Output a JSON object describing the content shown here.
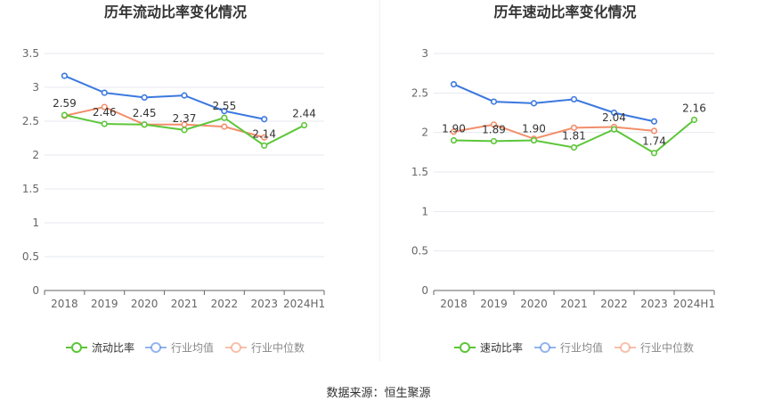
{
  "footer": {
    "source": "数据来源：恒生聚源"
  },
  "chart_data": [
    {
      "type": "line",
      "title": "历年流动比率变化情况",
      "categories": [
        "2018",
        "2019",
        "2020",
        "2021",
        "2022",
        "2023",
        "2024H1"
      ],
      "ylim": [
        0,
        3.5
      ],
      "yticks": [
        0,
        0.5,
        1,
        1.5,
        2,
        2.5,
        3,
        3.5
      ],
      "ytick_labels": [
        "0",
        "0.5",
        "1",
        "1.5",
        "2",
        "2.5",
        "3",
        "3.5"
      ],
      "grid": true,
      "legend_position": "bottom",
      "series": [
        {
          "name": "流动比率",
          "color": "#5cc638",
          "values": [
            2.59,
            2.46,
            2.45,
            2.37,
            2.55,
            2.14,
            2.44
          ],
          "labels": [
            "2.59",
            "2.46",
            "2.45",
            "2.37",
            "2.55",
            "2.14",
            "2.44"
          ]
        },
        {
          "name": "行业均值",
          "color": "#3b78e0",
          "values": [
            3.17,
            2.92,
            2.85,
            2.88,
            2.65,
            2.53,
            null
          ]
        },
        {
          "name": "行业中位数",
          "color": "#f28e6b",
          "values": [
            2.58,
            2.71,
            2.45,
            2.45,
            2.42,
            2.26,
            null
          ]
        }
      ]
    },
    {
      "type": "line",
      "title": "历年速动比率变化情况",
      "categories": [
        "2018",
        "2019",
        "2020",
        "2021",
        "2022",
        "2023",
        "2024H1"
      ],
      "ylim": [
        0,
        3
      ],
      "yticks": [
        0,
        0.5,
        1,
        1.5,
        2,
        2.5,
        3
      ],
      "ytick_labels": [
        "0",
        "0.5",
        "1",
        "1.5",
        "2",
        "2.5",
        "3"
      ],
      "grid": true,
      "legend_position": "bottom",
      "series": [
        {
          "name": "速动比率",
          "color": "#5cc638",
          "values": [
            1.9,
            1.89,
            1.9,
            1.81,
            2.04,
            1.74,
            2.16
          ],
          "labels": [
            "1.90",
            "1.89",
            "1.90",
            "1.81",
            "2.04",
            "1.74",
            "2.16"
          ]
        },
        {
          "name": "行业均值",
          "color": "#3b78e0",
          "values": [
            2.61,
            2.39,
            2.37,
            2.42,
            2.25,
            2.14,
            null
          ]
        },
        {
          "name": "行业中位数",
          "color": "#f28e6b",
          "values": [
            2.01,
            2.1,
            1.92,
            2.06,
            2.07,
            2.02,
            null
          ]
        }
      ]
    }
  ]
}
